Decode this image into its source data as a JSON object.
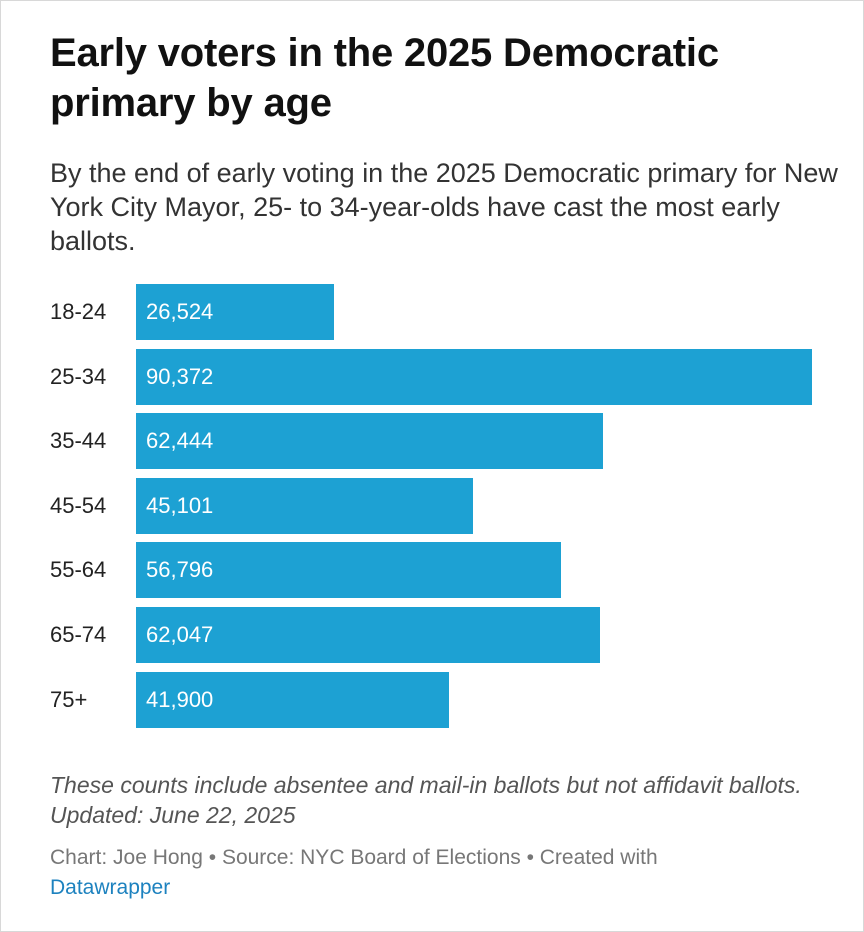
{
  "chart_data": {
    "type": "bar",
    "orientation": "horizontal",
    "title": "Early voters in the 2025 Democratic primary by age",
    "subtitle": "By the end of early voting in the 2025 Democratic primary for New York City Mayor, 25- to 34-year-olds have cast the most early ballots.",
    "categories": [
      "18-24",
      "25-34",
      "35-44",
      "45-54",
      "55-64",
      "65-74",
      "75+"
    ],
    "values": [
      26524,
      90372,
      62444,
      45101,
      56796,
      62047,
      41900
    ],
    "value_labels": [
      "26,524",
      "90,372",
      "62,444",
      "45,101",
      "56,796",
      "62,047",
      "41,900"
    ],
    "xlim": [
      0,
      90372
    ],
    "color": "#1da1d3",
    "xlabel": "",
    "ylabel": ""
  },
  "footer": {
    "note": "These counts include absentee and mail-in ballots but not affidavit ballots. Updated: June 22, 2025",
    "credits_prefix": "Chart: Joe Hong • Source: NYC Board of Elections • Created with",
    "credits_link": "Datawrapper"
  }
}
